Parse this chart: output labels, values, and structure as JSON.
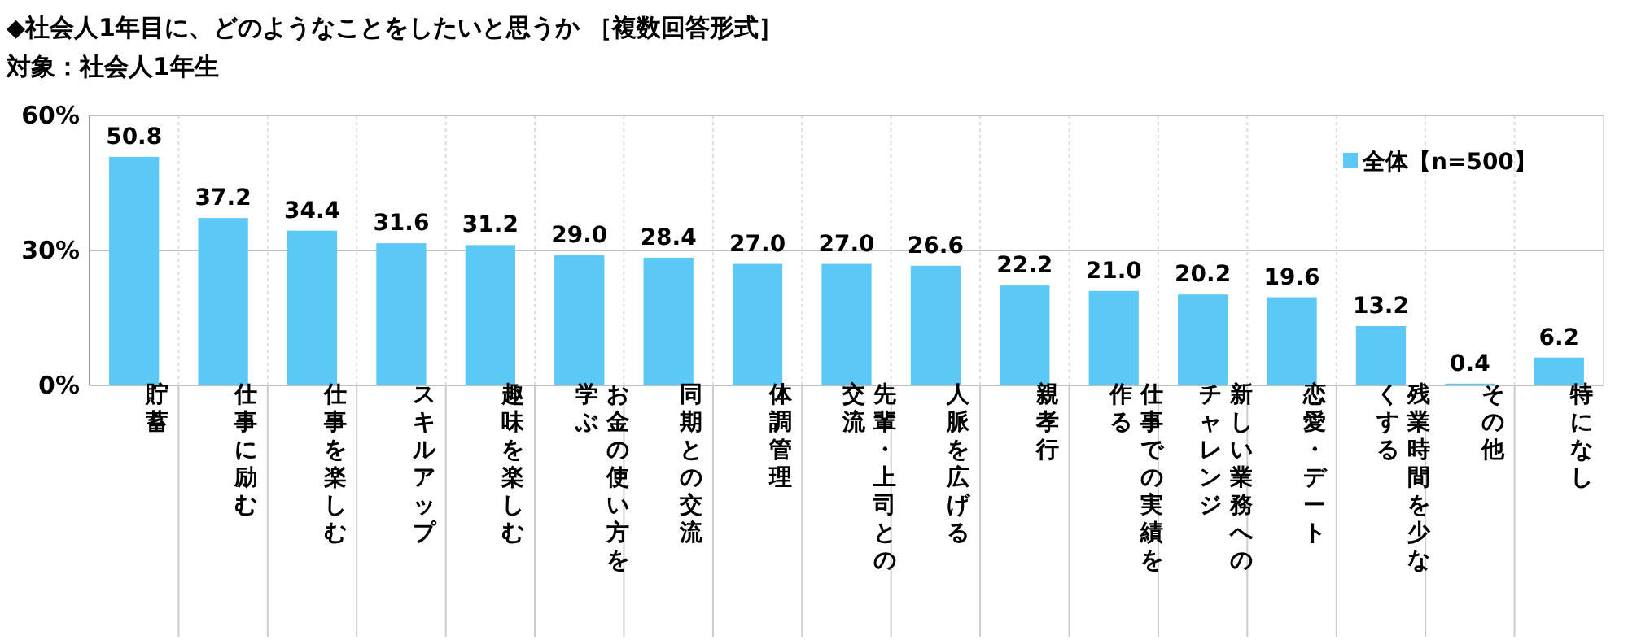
{
  "chart_data": {
    "type": "bar",
    "title": "◆社会人1年目に、どのようなことをしたいと思うか ［複数回答形式］",
    "subtitle": "対象：社会人1年生",
    "categories": [
      "貯蓄",
      "仕事に励む",
      "仕事を楽しむ",
      "スキルアップ",
      "趣味を楽しむ",
      "お金の使い方を学ぶ",
      "同期との交流",
      "体調管理",
      "先輩・上司との交流",
      "人脈を広げる",
      "親孝行",
      "仕事での実績を作る",
      "新しい業務へのチャレンジ",
      "恋愛・デート",
      "残業時間を少なくする",
      "その他",
      "特になし"
    ],
    "series": [
      {
        "name": "全体【n=500】",
        "color": "#5bc8f5",
        "values": [
          50.8,
          37.2,
          34.4,
          31.6,
          31.2,
          29.0,
          28.4,
          27.0,
          27.0,
          26.6,
          22.2,
          21.0,
          20.2,
          19.6,
          13.2,
          0.4,
          6.2
        ]
      }
    ],
    "value_labels": [
      "50.8",
      "37.2",
      "34.4",
      "31.6",
      "31.2",
      "29.0",
      "28.4",
      "27.0",
      "27.0",
      "26.6",
      "22.2",
      "21.0",
      "20.2",
      "19.6",
      "13.2",
      "0.4",
      "6.2"
    ],
    "ylim": [
      0,
      60
    ],
    "yticks": [
      {
        "value": 0,
        "label": "0%"
      },
      {
        "value": 30,
        "label": "30%"
      },
      {
        "value": 60,
        "label": "60%"
      }
    ],
    "grid": "y",
    "legend": "top right"
  }
}
